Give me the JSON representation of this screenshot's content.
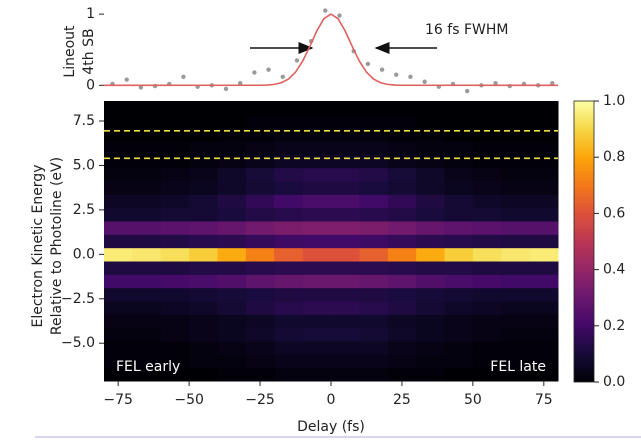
{
  "chart_data": [
    {
      "type": "line",
      "ylabel": [
        "Lineout",
        "4th SB"
      ],
      "annotation": "16 fs FWHM",
      "xlim": [
        -80,
        80
      ],
      "ylim": [
        -0.15,
        1.1
      ],
      "yticks": [
        0,
        1
      ],
      "series": [
        {
          "style": "scatter",
          "color": "#9a9a9a",
          "x": [
            -77,
            -72,
            -67,
            -62,
            -57,
            -52,
            -47,
            -42,
            -37,
            -32,
            -27,
            -22,
            -17,
            -12,
            -7,
            -2,
            3,
            8,
            13,
            18,
            23,
            28,
            33,
            38,
            43,
            48,
            53,
            58,
            63,
            68,
            73,
            78
          ],
          "values": [
            0.02,
            0.08,
            -0.03,
            -0.01,
            0.02,
            0.12,
            -0.02,
            0.0,
            -0.05,
            0.03,
            0.18,
            0.22,
            0.12,
            0.35,
            0.62,
            1.05,
            0.98,
            0.48,
            0.3,
            0.22,
            0.15,
            0.12,
            0.05,
            -0.02,
            0.02,
            -0.08,
            0.0,
            0.03,
            -0.01,
            0.02,
            0.0,
            0.03
          ]
        },
        {
          "style": "line",
          "color": "#e06060",
          "x": [
            -80,
            -25,
            -22.5,
            -20,
            -17.5,
            -15,
            -12.5,
            -10,
            -7.5,
            -5,
            -2.5,
            0,
            2.5,
            5,
            7.5,
            10,
            12.5,
            15,
            17.5,
            20,
            22.5,
            25,
            80
          ],
          "values": [
            0,
            0.001,
            0.004,
            0.013,
            0.036,
            0.088,
            0.185,
            0.339,
            0.544,
            0.763,
            0.935,
            1,
            0.935,
            0.763,
            0.544,
            0.339,
            0.185,
            0.088,
            0.036,
            0.013,
            0.004,
            0.001,
            0
          ]
        }
      ]
    },
    {
      "type": "heatmap",
      "xlabel": "Delay (fs)",
      "ylabel": [
        "Electron Kinetic Energy",
        "Relative to Photoline (eV)"
      ],
      "annotations": [
        "FEL early",
        "FEL late"
      ],
      "xlim": [
        -80,
        80
      ],
      "ylim": [
        -7.125,
        8.625
      ],
      "xticks": [
        {
          "value": -75,
          "label": "−75"
        },
        {
          "value": -50,
          "label": "−50"
        },
        {
          "value": -25,
          "label": "−25"
        },
        0,
        25,
        50,
        75
      ],
      "yticks": [
        {
          "value": -5,
          "label": "−5.0"
        },
        {
          "value": -2.5,
          "label": "−2.5"
        },
        {
          "value": 0,
          "label": "0.0"
        },
        2.5,
        {
          "value": 5,
          "label": "5.0"
        },
        7.5
      ],
      "x": [
        -75,
        -65,
        -55,
        -45,
        -35,
        -25,
        -15,
        -5,
        5,
        15,
        25,
        35,
        45,
        55,
        65,
        75
      ],
      "y": [
        -6.75,
        -6,
        -5.25,
        -4.5,
        -3.75,
        -3,
        -2.25,
        -1.5,
        -0.75,
        0,
        0.75,
        1.5,
        2.25,
        3,
        3.75,
        4.5,
        5.25,
        6,
        6.75,
        7.5,
        8.25
      ],
      "values": [
        [
          0,
          0,
          0,
          0,
          0.01,
          0.01,
          0.02,
          0.02,
          0.02,
          0.02,
          0.01,
          0.01,
          0,
          0,
          0,
          0
        ],
        [
          0.01,
          0.01,
          0.01,
          0.02,
          0.02,
          0.03,
          0.04,
          0.04,
          0.04,
          0.04,
          0.03,
          0.02,
          0.02,
          0.01,
          0.01,
          0.01
        ],
        [
          0.01,
          0.01,
          0.01,
          0.02,
          0.03,
          0.04,
          0.06,
          0.06,
          0.06,
          0.06,
          0.04,
          0.03,
          0.02,
          0.01,
          0.01,
          0.01
        ],
        [
          0.02,
          0.02,
          0.03,
          0.04,
          0.05,
          0.07,
          0.09,
          0.1,
          0.1,
          0.09,
          0.07,
          0.05,
          0.04,
          0.03,
          0.02,
          0.02
        ],
        [
          0.03,
          0.03,
          0.03,
          0.04,
          0.05,
          0.06,
          0.08,
          0.08,
          0.08,
          0.08,
          0.06,
          0.05,
          0.04,
          0.03,
          0.03,
          0.03
        ],
        [
          0.05,
          0.05,
          0.06,
          0.07,
          0.09,
          0.12,
          0.14,
          0.15,
          0.15,
          0.14,
          0.12,
          0.09,
          0.07,
          0.06,
          0.05,
          0.05
        ],
        [
          0.08,
          0.08,
          0.08,
          0.09,
          0.1,
          0.11,
          0.12,
          0.12,
          0.12,
          0.12,
          0.11,
          0.1,
          0.09,
          0.08,
          0.08,
          0.08
        ],
        [
          0.2,
          0.2,
          0.21,
          0.22,
          0.24,
          0.27,
          0.29,
          0.3,
          0.3,
          0.29,
          0.27,
          0.24,
          0.22,
          0.21,
          0.2,
          0.2
        ],
        [
          0.12,
          0.12,
          0.12,
          0.13,
          0.13,
          0.14,
          0.15,
          0.15,
          0.15,
          0.15,
          0.14,
          0.13,
          0.13,
          0.12,
          0.12,
          0.12
        ],
        [
          0.95,
          0.94,
          0.92,
          0.88,
          0.81,
          0.72,
          0.64,
          0.6,
          0.6,
          0.64,
          0.72,
          0.81,
          0.88,
          0.92,
          0.94,
          0.95
        ],
        [
          0.12,
          0.12,
          0.13,
          0.14,
          0.15,
          0.17,
          0.19,
          0.2,
          0.2,
          0.19,
          0.17,
          0.15,
          0.14,
          0.13,
          0.12,
          0.12
        ],
        [
          0.25,
          0.25,
          0.26,
          0.27,
          0.29,
          0.32,
          0.34,
          0.35,
          0.35,
          0.34,
          0.32,
          0.29,
          0.27,
          0.26,
          0.25,
          0.25
        ],
        [
          0.08,
          0.08,
          0.09,
          0.09,
          0.11,
          0.13,
          0.14,
          0.15,
          0.15,
          0.14,
          0.13,
          0.11,
          0.09,
          0.09,
          0.08,
          0.08
        ],
        [
          0.06,
          0.06,
          0.07,
          0.09,
          0.12,
          0.16,
          0.2,
          0.22,
          0.22,
          0.2,
          0.16,
          0.12,
          0.09,
          0.07,
          0.06,
          0.06
        ],
        [
          0.03,
          0.03,
          0.04,
          0.05,
          0.07,
          0.09,
          0.11,
          0.12,
          0.12,
          0.11,
          0.09,
          0.07,
          0.05,
          0.04,
          0.03,
          0.03
        ],
        [
          0.02,
          0.02,
          0.03,
          0.04,
          0.07,
          0.1,
          0.13,
          0.14,
          0.14,
          0.13,
          0.1,
          0.07,
          0.04,
          0.03,
          0.02,
          0.02
        ],
        [
          0.01,
          0.01,
          0.01,
          0.02,
          0.03,
          0.04,
          0.06,
          0.06,
          0.06,
          0.06,
          0.04,
          0.03,
          0.02,
          0.01,
          0.01,
          0.01
        ],
        [
          0.01,
          0.01,
          0.01,
          0.02,
          0.02,
          0.03,
          0.04,
          0.04,
          0.04,
          0.04,
          0.03,
          0.02,
          0.02,
          0.01,
          0.01,
          0.01
        ],
        [
          0,
          0,
          0,
          0,
          0.01,
          0.01,
          0.02,
          0.02,
          0.02,
          0.02,
          0.01,
          0.01,
          0,
          0,
          0,
          0
        ],
        [
          0,
          0,
          0,
          0,
          0,
          0.01,
          0.01,
          0.01,
          0.01,
          0.01,
          0.01,
          0,
          0,
          0,
          0,
          0
        ],
        [
          0,
          0,
          0,
          0,
          0,
          0,
          0,
          0,
          0,
          0,
          0,
          0,
          0,
          0,
          0,
          0
        ]
      ],
      "hlines": [
        6.95,
        5.4
      ],
      "hline_color": "#f0e040",
      "colormap": [
        "#000004",
        "#160b39",
        "#420a68",
        "#6a176e",
        "#932667",
        "#bc3754",
        "#dd513a",
        "#f37819",
        "#fca50a",
        "#f6d746",
        "#fcffa4"
      ],
      "clim": [
        0,
        1
      ],
      "cticks": [
        {
          "value": 0,
          "label": "0.0"
        },
        0.2,
        0.4,
        0.6,
        0.8,
        {
          "value": 1,
          "label": "1.0"
        }
      ]
    }
  ]
}
